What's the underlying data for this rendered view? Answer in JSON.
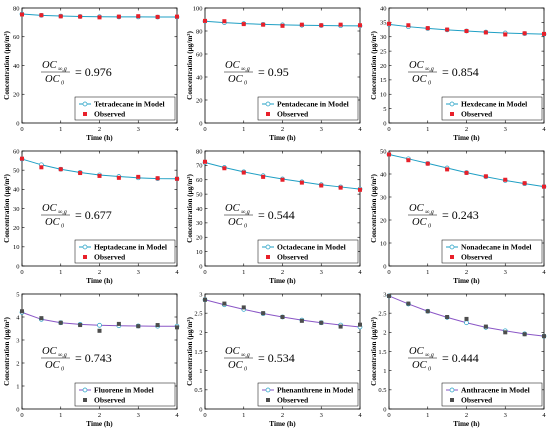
{
  "colors": {
    "model_line": "#1f9fc4",
    "model_marker_edge": "#1f9fc4",
    "observed_alkane": "#e8202a",
    "observed_pah": "#4d4d4d",
    "pah_line": "#8a56c6",
    "axis": "#000000"
  },
  "chart_data": [
    {
      "type": "line",
      "compound": "Tetradecane",
      "xlabel": "Time (h)",
      "ylabel": "Concentration (μg/m³)",
      "xlim": [
        0,
        4
      ],
      "ylim": [
        0,
        80
      ],
      "xticks": [
        0,
        1,
        2,
        3,
        4
      ],
      "yticks": [
        0,
        20,
        40,
        60,
        80
      ],
      "ratio": "0.976",
      "series": [
        {
          "name": "Tetradecane in Model",
          "kind": "model",
          "x": [
            0,
            0.5,
            1,
            1.5,
            2,
            2.5,
            3,
            3.5,
            4
          ],
          "values": [
            75.8,
            74.9,
            74.4,
            74.1,
            73.9,
            73.8,
            73.8,
            73.7,
            73.7
          ]
        },
        {
          "name": "Observed",
          "kind": "observed",
          "x": [
            0,
            0.5,
            1,
            1.5,
            2,
            2.5,
            3,
            3.5,
            4
          ],
          "values": [
            75.5,
            75.0,
            74.2,
            74.0,
            73.5,
            74.0,
            74.3,
            73.8,
            74.0
          ]
        }
      ]
    },
    {
      "type": "line",
      "compound": "Pentadecane",
      "xlabel": "Time (h)",
      "ylabel": "Concentration (μg/m³)",
      "xlim": [
        0,
        4
      ],
      "ylim": [
        0,
        100
      ],
      "xticks": [
        0,
        1,
        2,
        3,
        4
      ],
      "yticks": [
        0,
        20,
        40,
        60,
        80,
        100
      ],
      "ratio": "0.95",
      "series": [
        {
          "name": "Pentadecane in Model",
          "kind": "model",
          "x": [
            0,
            0.5,
            1,
            1.5,
            2,
            2.5,
            3,
            3.5,
            4
          ],
          "values": [
            88.5,
            87.3,
            86.4,
            85.8,
            85.3,
            85.0,
            84.8,
            84.6,
            84.5
          ]
        },
        {
          "name": "Observed",
          "kind": "observed",
          "x": [
            0,
            0.5,
            1,
            1.5,
            2,
            2.5,
            3,
            3.5,
            4
          ],
          "values": [
            88.8,
            88.5,
            86.0,
            85.5,
            84.5,
            85.5,
            85.0,
            85.5,
            85.0
          ]
        }
      ]
    },
    {
      "type": "line",
      "compound": "Hexdecane",
      "xlabel": "Time (h)",
      "ylabel": "Concentration (μg/m³)",
      "xlim": [
        0,
        4
      ],
      "ylim": [
        0,
        40
      ],
      "xticks": [
        0,
        1,
        2,
        3,
        4
      ],
      "yticks": [
        0,
        5,
        10,
        15,
        20,
        25,
        30,
        35,
        40
      ],
      "ratio": "0.854",
      "series": [
        {
          "name": "Hexdecane in Model",
          "kind": "model",
          "x": [
            0,
            0.5,
            1,
            1.5,
            2,
            2.5,
            3,
            3.5,
            4
          ],
          "values": [
            34.3,
            33.5,
            32.9,
            32.4,
            32.0,
            31.6,
            31.3,
            31.1,
            30.9
          ]
        },
        {
          "name": "Observed",
          "kind": "observed",
          "x": [
            0,
            0.5,
            1,
            1.5,
            2,
            2.5,
            3,
            3.5,
            4
          ],
          "values": [
            34.5,
            34.0,
            33.0,
            32.5,
            32.0,
            31.5,
            30.8,
            31.2,
            31.0
          ]
        }
      ]
    },
    {
      "type": "line",
      "compound": "Heptadecane",
      "xlabel": "Time (h)",
      "ylabel": "Concentration (μg/m³)",
      "xlim": [
        0,
        4
      ],
      "ylim": [
        0,
        60
      ],
      "xticks": [
        0,
        1,
        2,
        3,
        4
      ],
      "yticks": [
        0,
        10,
        20,
        30,
        40,
        50,
        60
      ],
      "ratio": "0.677",
      "series": [
        {
          "name": "Heptadecane in Model",
          "kind": "model",
          "x": [
            0,
            0.5,
            1,
            1.5,
            2,
            2.5,
            3,
            3.5,
            4
          ],
          "values": [
            55.8,
            52.8,
            50.5,
            48.8,
            47.5,
            46.7,
            46.0,
            45.6,
            45.5
          ]
        },
        {
          "name": "Observed",
          "kind": "observed",
          "x": [
            0,
            0.5,
            1,
            1.5,
            2,
            2.5,
            3,
            3.5,
            4
          ],
          "values": [
            56.0,
            51.5,
            50.5,
            48.5,
            47.0,
            46.0,
            46.5,
            45.8,
            45.5
          ]
        }
      ]
    },
    {
      "type": "line",
      "compound": "Octadecane",
      "xlabel": "Time (h)",
      "ylabel": "Concentration (μg/m³)",
      "xlim": [
        0,
        4
      ],
      "ylim": [
        0,
        80
      ],
      "xticks": [
        0,
        1,
        2,
        3,
        4
      ],
      "yticks": [
        0,
        10,
        20,
        30,
        40,
        50,
        60,
        70,
        80
      ],
      "ratio": "0.544",
      "series": [
        {
          "name": "Octadecane in Model",
          "kind": "model",
          "x": [
            0,
            0.5,
            1,
            1.5,
            2,
            2.5,
            3,
            3.5,
            4
          ],
          "values": [
            72.0,
            68.5,
            65.5,
            62.8,
            60.5,
            58.5,
            56.5,
            55.0,
            53.5
          ]
        },
        {
          "name": "Observed",
          "kind": "observed",
          "x": [
            0,
            0.5,
            1,
            1.5,
            2,
            2.5,
            3,
            3.5,
            4
          ],
          "values": [
            72.5,
            68.0,
            65.0,
            62.0,
            60.0,
            58.0,
            56.0,
            54.5,
            53.0
          ]
        }
      ]
    },
    {
      "type": "line",
      "compound": "Nonadecane",
      "xlabel": "Time (h)",
      "ylabel": "Concentration (μg/m³)",
      "xlim": [
        0,
        4
      ],
      "ylim": [
        0,
        50
      ],
      "xticks": [
        0,
        1,
        2,
        3,
        4
      ],
      "yticks": [
        0,
        10,
        20,
        30,
        40,
        50
      ],
      "ratio": "0.243",
      "series": [
        {
          "name": "Nonadecane in Model",
          "kind": "model",
          "x": [
            0,
            0.5,
            1,
            1.5,
            2,
            2.5,
            3,
            3.5,
            4
          ],
          "values": [
            48.5,
            46.6,
            44.6,
            42.6,
            40.6,
            38.8,
            37.2,
            35.8,
            34.5
          ]
        },
        {
          "name": "Observed",
          "kind": "observed",
          "x": [
            0,
            0.5,
            1,
            1.5,
            2,
            2.5,
            3,
            3.5,
            4
          ],
          "values": [
            48.5,
            46.0,
            44.5,
            42.0,
            40.5,
            39.0,
            37.5,
            36.0,
            34.5
          ]
        }
      ]
    },
    {
      "type": "line",
      "compound": "Fluorene",
      "xlabel": "Time (h)",
      "ylabel": "Concentration (μg/m³)",
      "xlim": [
        0,
        4
      ],
      "ylim": [
        0,
        5
      ],
      "xticks": [
        0,
        1,
        2,
        3,
        4
      ],
      "yticks": [
        0,
        1,
        2,
        3,
        4,
        5
      ],
      "ratio": "0.743",
      "series": [
        {
          "name": "Fluorene in Model",
          "kind": "model",
          "x": [
            0,
            0.5,
            1,
            1.5,
            2,
            2.5,
            3,
            3.5,
            4
          ],
          "values": [
            4.2,
            3.9,
            3.75,
            3.68,
            3.64,
            3.62,
            3.61,
            3.6,
            3.6
          ]
        },
        {
          "name": "Observed",
          "kind": "observed",
          "x": [
            0,
            0.5,
            1,
            1.5,
            2,
            2.5,
            3,
            3.5,
            4
          ],
          "values": [
            4.25,
            3.95,
            3.75,
            3.65,
            3.4,
            3.7,
            3.6,
            3.65,
            3.55
          ]
        }
      ]
    },
    {
      "type": "line",
      "compound": "Phenanthrene",
      "xlabel": "Time (h)",
      "ylabel": "Concentration (μg/m³)",
      "xlim": [
        0,
        4
      ],
      "ylim": [
        0,
        3
      ],
      "xticks": [
        0,
        1,
        2,
        3,
        4
      ],
      "yticks": [
        0,
        0.5,
        1,
        1.5,
        2,
        2.5,
        3
      ],
      "ratio": "0.534",
      "series": [
        {
          "name": "Phenanthrene in Model",
          "kind": "model",
          "x": [
            0,
            0.5,
            1,
            1.5,
            2,
            2.5,
            3,
            3.5,
            4
          ],
          "values": [
            2.85,
            2.72,
            2.6,
            2.49,
            2.4,
            2.32,
            2.25,
            2.19,
            2.14
          ]
        },
        {
          "name": "Observed",
          "kind": "observed",
          "x": [
            0,
            0.5,
            1,
            1.5,
            2,
            2.5,
            3,
            3.5,
            4
          ],
          "values": [
            2.85,
            2.75,
            2.65,
            2.5,
            2.4,
            2.3,
            2.25,
            2.15,
            2.2
          ]
        }
      ]
    },
    {
      "type": "line",
      "compound": "Anthracene",
      "xlabel": "Time (h)",
      "ylabel": "Concentration (μg/m³)",
      "xlim": [
        0,
        4
      ],
      "ylim": [
        0,
        3
      ],
      "xticks": [
        0,
        1,
        2,
        3,
        4
      ],
      "yticks": [
        0,
        0.5,
        1,
        1.5,
        2,
        2.5,
        3
      ],
      "ratio": "0.444",
      "series": [
        {
          "name": "Anthracene in Model",
          "kind": "model",
          "x": [
            0,
            0.5,
            1,
            1.5,
            2,
            2.5,
            3,
            3.5,
            4
          ],
          "values": [
            2.95,
            2.74,
            2.55,
            2.39,
            2.25,
            2.13,
            2.04,
            1.96,
            1.9
          ]
        },
        {
          "name": "Observed",
          "kind": "observed",
          "x": [
            0,
            0.5,
            1,
            1.5,
            2,
            2.5,
            3,
            3.5,
            4
          ],
          "values": [
            2.95,
            2.75,
            2.55,
            2.4,
            2.35,
            2.15,
            2.0,
            1.95,
            1.9
          ]
        }
      ]
    }
  ],
  "ratio_label": {
    "numerator": "OC",
    "numerator_sub": "∞,g",
    "denominator": "OC",
    "denominator_sub": "0",
    "equals": "="
  }
}
